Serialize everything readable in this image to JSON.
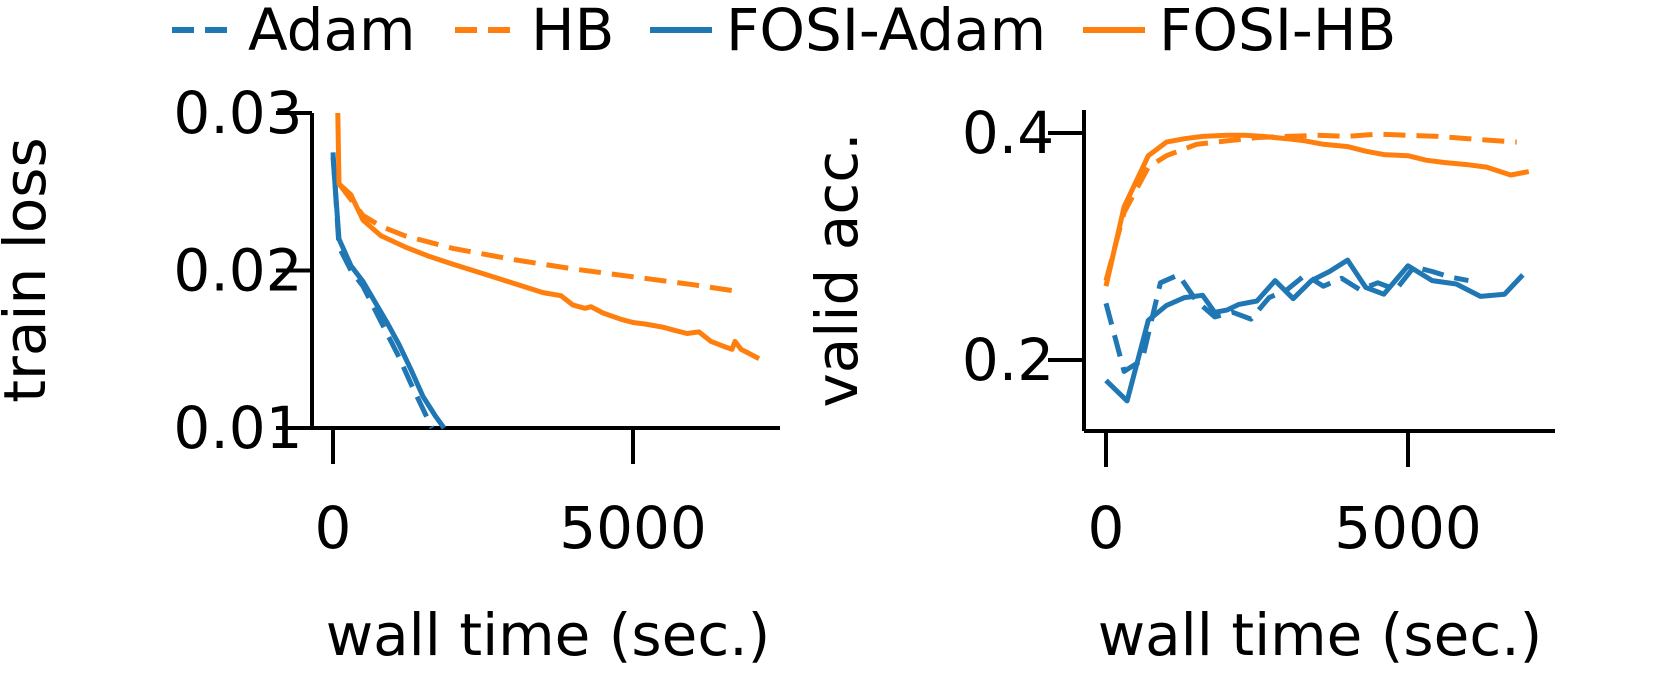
{
  "legend": [
    {
      "label": "Adam",
      "color": "#1f77b4",
      "style": "dashed"
    },
    {
      "label": "HB",
      "color": "#ff7f0e",
      "style": "dashed"
    },
    {
      "label": "FOSI-Adam",
      "color": "#1f77b4",
      "style": "solid"
    },
    {
      "label": "FOSI-HB",
      "color": "#ff7f0e",
      "style": "solid"
    }
  ],
  "chart_data": [
    {
      "type": "line",
      "xlabel": "wall time (sec.)",
      "ylabel": "train loss",
      "xlim": [
        -200,
        7400
      ],
      "ylim": [
        0.01,
        0.03
      ],
      "xticks": [
        0,
        5000
      ],
      "xtick_labels": [
        "0",
        "5000"
      ],
      "yticks": [
        0.01,
        0.02,
        0.03
      ],
      "ytick_labels": [
        "0.01",
        "0.02",
        "0.03"
      ],
      "series": [
        {
          "name": "Adam",
          "color": "#1f77b4",
          "style": "dashed",
          "x": [
            0,
            100,
            300,
            500,
            700,
            900,
            1100,
            1300,
            1500,
            1650
          ],
          "y": [
            0.0275,
            0.0215,
            0.02,
            0.019,
            0.0175,
            0.016,
            0.0145,
            0.0128,
            0.0112,
            0.01
          ]
        },
        {
          "name": "HB",
          "color": "#ff7f0e",
          "style": "dashed",
          "x": [
            100,
            300,
            500,
            800,
            1200,
            2000,
            3000,
            4000,
            5000,
            6000,
            6700
          ],
          "y": [
            0.0255,
            0.0245,
            0.0235,
            0.0228,
            0.0222,
            0.0214,
            0.0207,
            0.0201,
            0.0196,
            0.0191,
            0.0187
          ]
        },
        {
          "name": "FOSI-Adam",
          "color": "#1f77b4",
          "style": "solid",
          "x": [
            0,
            100,
            300,
            500,
            700,
            900,
            1100,
            1300,
            1500,
            1700,
            1850
          ],
          "y": [
            0.0272,
            0.022,
            0.0203,
            0.0193,
            0.018,
            0.0167,
            0.0153,
            0.0137,
            0.012,
            0.0108,
            0.01
          ]
        },
        {
          "name": "FOSI-HB",
          "color": "#ff7f0e",
          "style": "solid",
          "x": [
            80,
            100,
            300,
            500,
            800,
            1200,
            1600,
            2000,
            2500,
            3000,
            3500,
            3800,
            4000,
            4200,
            4300,
            4500,
            4800,
            5000,
            5200,
            5500,
            5700,
            5900,
            6100,
            6300,
            6500,
            6650,
            6700,
            6800,
            6900,
            7100
          ],
          "y": [
            0.03,
            0.0255,
            0.0248,
            0.0232,
            0.0222,
            0.0215,
            0.0209,
            0.0204,
            0.0198,
            0.0192,
            0.0186,
            0.0184,
            0.0178,
            0.0176,
            0.0177,
            0.0173,
            0.0169,
            0.0167,
            0.0166,
            0.0164,
            0.0162,
            0.016,
            0.0161,
            0.0155,
            0.0152,
            0.015,
            0.0155,
            0.015,
            0.0148,
            0.0144
          ]
        }
      ]
    },
    {
      "type": "line",
      "xlabel": "wall time (sec.)",
      "ylabel": "valid acc.",
      "xlim": [
        -200,
        7400
      ],
      "ylim": [
        0.14,
        0.42
      ],
      "xticks": [
        0,
        5000
      ],
      "xtick_labels": [
        "0",
        "5000"
      ],
      "yticks": [
        0.2,
        0.4
      ],
      "ytick_labels": [
        "0.2",
        "0.4"
      ],
      "series": [
        {
          "name": "Adam",
          "color": "#1f77b4",
          "style": "dashed",
          "x": [
            0,
            300,
            600,
            900,
            1200,
            1500,
            1800,
            2100,
            2400,
            2700,
            3000,
            3300,
            3600,
            3900,
            4200,
            4500,
            4800,
            5100,
            5400,
            5700,
            6000
          ],
          "y": [
            0.25,
            0.19,
            0.2,
            0.268,
            0.275,
            0.252,
            0.238,
            0.242,
            0.236,
            0.255,
            0.262,
            0.275,
            0.265,
            0.272,
            0.262,
            0.268,
            0.262,
            0.282,
            0.278,
            0.273,
            0.27
          ]
        },
        {
          "name": "HB",
          "color": "#ff7f0e",
          "style": "dashed",
          "x": [
            0,
            300,
            700,
            1000,
            1500,
            2000,
            2500,
            3000,
            3500,
            4000,
            4500,
            5000,
            5500,
            6000,
            6500,
            6800
          ],
          "y": [
            0.27,
            0.33,
            0.37,
            0.38,
            0.39,
            0.393,
            0.396,
            0.397,
            0.398,
            0.397,
            0.399,
            0.398,
            0.397,
            0.395,
            0.393,
            0.392
          ]
        },
        {
          "name": "FOSI-Adam",
          "color": "#1f77b4",
          "style": "solid",
          "x": [
            0,
            350,
            700,
            1000,
            1300,
            1600,
            1800,
            2000,
            2200,
            2500,
            2800,
            3100,
            3400,
            3700,
            4000,
            4300,
            4600,
            5000,
            5400,
            5800,
            6200,
            6600,
            6900
          ],
          "y": [
            0.182,
            0.164,
            0.235,
            0.248,
            0.255,
            0.257,
            0.242,
            0.244,
            0.249,
            0.252,
            0.27,
            0.254,
            0.27,
            0.278,
            0.288,
            0.264,
            0.258,
            0.283,
            0.27,
            0.267,
            0.256,
            0.258,
            0.275
          ]
        },
        {
          "name": "FOSI-HB",
          "color": "#ff7f0e",
          "style": "solid",
          "x": [
            0,
            300,
            700,
            1000,
            1300,
            1600,
            2000,
            2300,
            2600,
            3000,
            3300,
            3600,
            4000,
            4300,
            4600,
            5000,
            5300,
            5600,
            6000,
            6300,
            6700,
            7000
          ],
          "y": [
            0.265,
            0.335,
            0.38,
            0.392,
            0.395,
            0.397,
            0.398,
            0.398,
            0.397,
            0.395,
            0.393,
            0.39,
            0.388,
            0.384,
            0.381,
            0.38,
            0.376,
            0.374,
            0.372,
            0.37,
            0.363,
            0.366
          ]
        }
      ]
    }
  ]
}
